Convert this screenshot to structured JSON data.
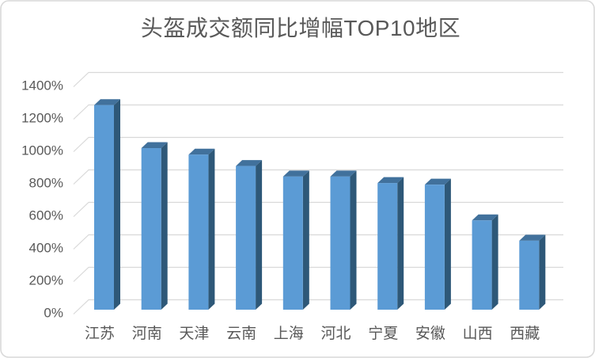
{
  "window": {
    "background": "#FFFFFF",
    "frame_border_color": "#D9D9D9"
  },
  "chart_data": {
    "type": "bar",
    "variant": "3d-clustered-column",
    "title": "头盔成交额同比增幅TOP10地区",
    "categories": [
      "江苏",
      "河南",
      "天津",
      "云南",
      "上海",
      "河北",
      "宁夏",
      "安徽",
      "山西",
      "西藏"
    ],
    "values": [
      1260,
      995,
      955,
      885,
      820,
      820,
      780,
      770,
      550,
      425
    ],
    "unit": "%",
    "xlabel": "",
    "ylabel": "",
    "ylim": [
      0,
      1400
    ],
    "ytick_step": 200,
    "ytick_labels": [
      "0%",
      "200%",
      "400%",
      "600%",
      "800%",
      "1000%",
      "1200%",
      "1400%"
    ],
    "grid": true,
    "legend": "none",
    "colors": {
      "bar_front": "#5B9BD5",
      "bar_top": "#41719C",
      "bar_side": "#2E5878",
      "gridline": "#D9D9D9",
      "axis_text": "#595959",
      "title_text": "#595959"
    }
  }
}
